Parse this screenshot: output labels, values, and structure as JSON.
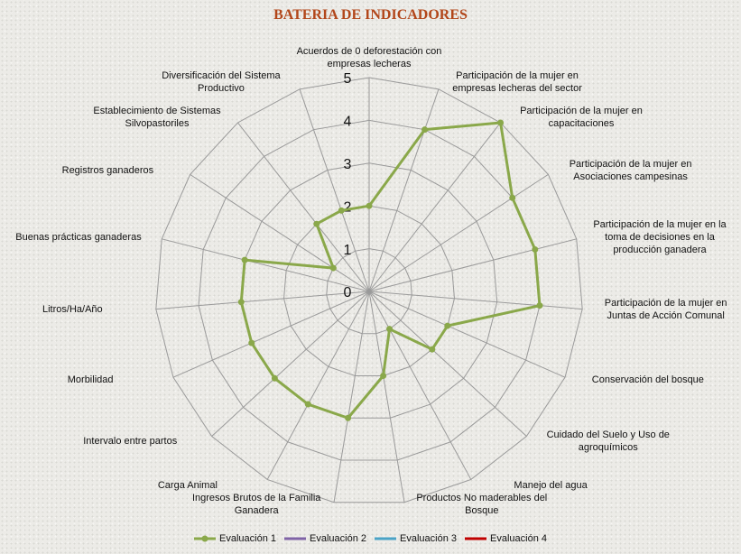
{
  "chart_data": {
    "type": "radar",
    "title": "BATERIA DE INDICADORES",
    "categories": [
      "Acuerdos de 0 deforestación con empresas lecheras",
      "Participación de la mujer en empresas lecheras del sector",
      "Participación de la mujer en capacitaciones",
      "Participación de la mujer en Asociaciones campesinas",
      "Participación de la mujer en la toma de decisiones en la producción ganadera",
      "Participación de la mujer en Juntas de Acción Comunal",
      "Conservación del bosque",
      "Cuidado del Suelo y Uso de agroquímicos",
      "Manejo del agua",
      "Productos No maderables del Bosque",
      "Ingresos Brutos de la Familia Ganadera",
      "Carga Animal",
      "Intervalo entre partos",
      "Morbilidad",
      "Litros/Ha/Año",
      "Buenas prácticas ganaderas",
      "Registros ganaderos",
      "Establecimiento de Sistemas Silvopastoriles",
      "Diversificación del Sistema Productivo"
    ],
    "series": [
      {
        "name": "Evaluación 1",
        "color": "#8aa84a",
        "values": [
          2,
          4,
          5,
          4,
          4,
          4,
          2,
          2,
          1,
          2,
          3,
          3,
          3,
          3,
          3,
          3,
          1,
          2,
          2
        ]
      },
      {
        "name": "Evaluación 2",
        "color": "#7f63a6",
        "values": [
          null,
          null,
          null,
          null,
          null,
          null,
          null,
          null,
          null,
          null,
          null,
          null,
          null,
          null,
          null,
          null,
          null,
          null,
          null
        ]
      },
      {
        "name": "Evaluación 3",
        "color": "#4aa3c6",
        "values": [
          null,
          null,
          null,
          null,
          null,
          null,
          null,
          null,
          null,
          null,
          null,
          null,
          null,
          null,
          null,
          null,
          null,
          null,
          null
        ]
      },
      {
        "name": "Evaluación 4",
        "color": "#c00000",
        "values": [
          null,
          null,
          null,
          null,
          null,
          null,
          null,
          null,
          null,
          null,
          null,
          null,
          null,
          null,
          null,
          null,
          null,
          null,
          null
        ]
      }
    ],
    "rlim": [
      0,
      5
    ],
    "rticks": [
      0,
      1,
      2,
      3,
      4,
      5
    ],
    "grid": true,
    "legend": "bottom"
  }
}
